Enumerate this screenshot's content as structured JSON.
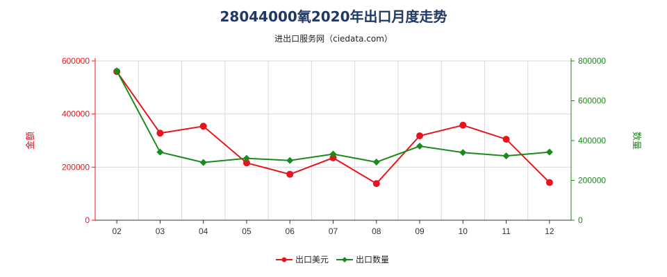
{
  "title": "28044000氧2020年出口月度走势",
  "subtitle": "进出口服务网（ciedata.com）",
  "colors": {
    "usd": "#e8141c",
    "qty": "#1a8a1a",
    "grid": "#d9d9d9",
    "axis": "#333333"
  },
  "chart_data": {
    "type": "line",
    "categories": [
      "02",
      "03",
      "04",
      "05",
      "06",
      "07",
      "08",
      "09",
      "10",
      "11",
      "12"
    ],
    "left_axis": {
      "label": "金额",
      "ylim": [
        0,
        600000
      ],
      "ticks": [
        "0",
        "200000",
        "400000",
        "600000"
      ]
    },
    "right_axis": {
      "label": "数量",
      "ylim": [
        0,
        800000
      ],
      "ticks": [
        "0",
        "200000",
        "400000",
        "600000",
        "800000"
      ]
    },
    "series": [
      {
        "name": "出口美元",
        "axis": "left",
        "values": [
          560000,
          328000,
          354000,
          216000,
          173000,
          235000,
          138000,
          318000,
          358000,
          305000,
          142000
        ]
      },
      {
        "name": "出口数量",
        "axis": "right",
        "values": [
          750000,
          342000,
          290000,
          311000,
          300000,
          332000,
          292000,
          372000,
          340000,
          323000,
          342000
        ]
      }
    ],
    "grid": true,
    "legend_position": "bottom"
  }
}
